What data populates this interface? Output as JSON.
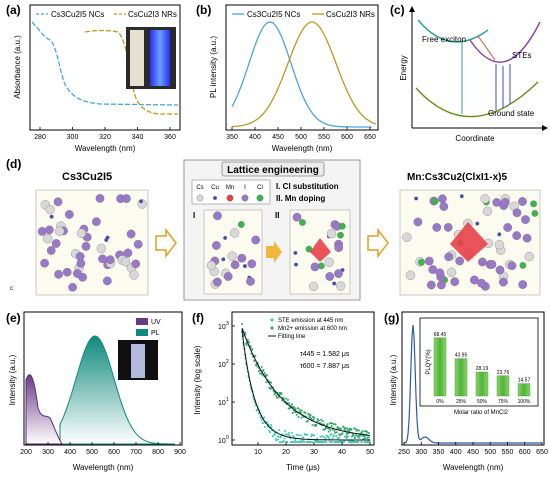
{
  "panel_labels": [
    "(a)",
    "(b)",
    "(c)",
    "(d)",
    "(e)",
    "(f)",
    "(g)"
  ],
  "a": {
    "legend": [
      "Cs3Cu2I5 NCs",
      "CsCu2I3 NRs"
    ],
    "ylabel": "Absorbance (a.u.)",
    "xlabel": "Wavelength (nm)",
    "xticks": [
      "280",
      "300",
      "320",
      "340",
      "360"
    ],
    "colors": {
      "ncs": "#4aa3df",
      "nrs": "#b99a1d"
    }
  },
  "b": {
    "legend": [
      "Cs3Cu2I5 NCs",
      "CsCu2I3 NRs"
    ],
    "ylabel": "PL intensity (a.u.)",
    "xlabel": "Wavelength (nm)",
    "xticks": [
      "350",
      "400",
      "450",
      "500",
      "550",
      "600",
      "650"
    ]
  },
  "c": {
    "ylabel": "Energy",
    "xlabel": "Coordinate",
    "labels": {
      "free": "Free exciton",
      "stes": "STEs",
      "ground": "Ground state"
    }
  },
  "d": {
    "left_title": "Cs3Cu2I5",
    "center_title": "Lattice engineering",
    "legend_items": [
      "Cs",
      "Cu",
      "Mn",
      "I",
      "Cl"
    ],
    "steps": [
      "I. Cl substitution",
      "II. Mn doping"
    ],
    "step_marks": [
      "I",
      "II"
    ],
    "right_title": "Mn:Cs3Cu2(ClxI1-x)5"
  },
  "e": {
    "ylabel": "Intensity (a.u.)",
    "xlabel": "Wavelength (nm)",
    "xticks": [
      "200",
      "300",
      "400",
      "500",
      "600",
      "700",
      "800",
      "900"
    ],
    "legend": [
      "UV",
      "PL"
    ]
  },
  "f": {
    "ylabel": "Intensity (log scale)",
    "xlabel": "Time (μs)",
    "xticks": [
      "10",
      "20",
      "30",
      "40",
      "50"
    ],
    "yticks": [
      "10",
      "10",
      "10",
      "10"
    ],
    "yexp": [
      "0",
      "1",
      "2",
      "3"
    ],
    "legend": [
      "STE emission at 445 nm",
      "Mn2+ emission at 600 nm",
      "Fitting line"
    ],
    "tau1": "τ445 = 1.582 μs",
    "tau2": "τ600 = 7.887 μs"
  },
  "g": {
    "ylabel": "Intensity (a.u.)",
    "xlabel": "Wavelength (nm)",
    "xticks": [
      "250",
      "300",
      "350",
      "400",
      "450",
      "500",
      "550",
      "600",
      "650"
    ],
    "inset": {
      "ylabel": "PLQY(%)",
      "xlabel": "Molar ratio of MnCl2",
      "categories": [
        "0%",
        "25%",
        "50%",
        "75%",
        "100%"
      ],
      "values": [
        68.45,
        43.95,
        28.19,
        23.76,
        14.57
      ],
      "value_labels": [
        "68.45",
        "43.95",
        "28.19",
        "23.76",
        "14.57"
      ]
    }
  }
}
